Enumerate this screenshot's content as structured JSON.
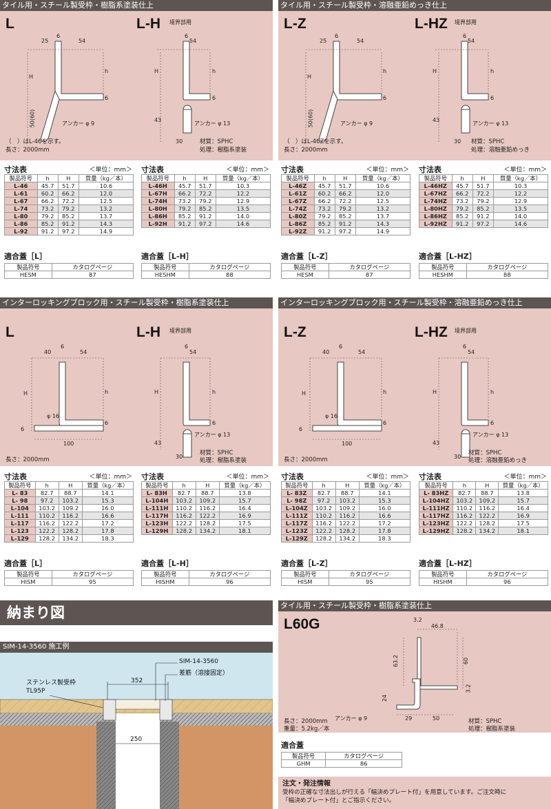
{
  "panels": {
    "p1": {
      "header": "タイル用・スチール製受枠・樹脂系塗装仕上",
      "g1": "L",
      "g2": "L-H",
      "g2sub": "境界部用",
      "d": {
        "a25": "25",
        "a6": "6",
        "a54": "54",
        "b6": "6",
        "b54": "54",
        "H": "H",
        "h": "h",
        "t6": "6",
        "v6": "6",
        "h2": "H",
        "hh2": "h",
        "v50": "50(60)",
        "v43": "43",
        "h30": "30",
        "anc1": "アンカー φ 9",
        "anc2": "アンカー φ 13"
      },
      "noteL": "（　）はL-46を示す。",
      "length": "長さ：2000mm",
      "material": "材質：SPHC",
      "treat": "処理：樹脂系塗装"
    },
    "p2": {
      "header": "タイル用・スチール製受枠・溶融亜鉛めっき仕上",
      "g1": "L-Z",
      "g2": "L-HZ",
      "g2sub": "境界部用",
      "d": {
        "a25": "25",
        "a6": "6",
        "a54": "54",
        "b6": "6",
        "b54": "54",
        "H": "H",
        "h": "h",
        "t6": "6",
        "v6": "6",
        "h2": "H",
        "hh2": "h",
        "v50": "50(60)",
        "v43": "43",
        "h30": "30",
        "anc1": "アンカー φ 9",
        "anc2": "アンカー φ 13"
      },
      "noteL": "（　）はL-46Zを示す。",
      "length": "長さ：2000mm",
      "material": "材質：SPHC",
      "treat": "処理：溶融亜鉛めっき"
    },
    "p3": {
      "header": "インターロッキングブロック用・スチール製受枠・樹脂系塗装仕上",
      "g1": "L",
      "g2": "L-H",
      "g2sub": "境界部用",
      "d": {
        "a40": "40",
        "a6": "6",
        "a54": "54",
        "b6": "6",
        "b54": "54",
        "H": "H",
        "h": "h",
        "phi": "φ 16",
        "v6a": "6",
        "w100": "100",
        "v6b": "6",
        "h2": "H",
        "hh2": "h",
        "v6c": "6",
        "v43": "43",
        "h30": "30",
        "anc2": "アンカー φ 13"
      },
      "length": "長さ：2000mm",
      "material": "材質：SPHC",
      "treat": "処理：樹脂系塗装"
    },
    "p4": {
      "header": "インターロッキングブロック用・スチール製受枠・溶融亜鉛めっき仕上",
      "g1": "L-Z",
      "g2": "L-HZ",
      "g2sub": "境界部用",
      "d": {
        "a40": "40",
        "a6": "6",
        "a54": "54",
        "b6": "6",
        "b54": "54",
        "H": "H",
        "h": "h",
        "phi": "φ 16",
        "v6a": "6",
        "w100": "100",
        "v6b": "6",
        "h2": "H",
        "hh2": "h",
        "v6c": "6",
        "v43": "43",
        "h30": "30",
        "anc2": "アンカー φ 13"
      },
      "length": "長さ：2000mm",
      "material": "材質：SPHC",
      "treat": "処理：溶融亜鉛めっき"
    }
  },
  "st": {
    "title": "寸法表",
    "unit": "＜単位：mm＞",
    "cols": [
      "製品符号",
      "h",
      "H",
      "質量（kg／本）"
    ]
  },
  "tables": {
    "t1": [
      [
        "L-46",
        "45.7",
        "51.7",
        "10.6"
      ],
      [
        "L-61",
        "60.2",
        "66.2",
        "12.0"
      ],
      [
        "L-67",
        "66.2",
        "72.2",
        "12.5"
      ],
      [
        "L-74",
        "73.2",
        "79.2",
        "13.2"
      ],
      [
        "L-80",
        "79.2",
        "85.2",
        "13.7"
      ],
      [
        "L-86",
        "85.2",
        "91.2",
        "14.3"
      ],
      [
        "L-92",
        "91.2",
        "97.2",
        "14.9"
      ]
    ],
    "t2": [
      [
        "L-46H",
        "45.7",
        "51.7",
        "10.3"
      ],
      [
        "L-67H",
        "66.2",
        "72.2",
        "12.2"
      ],
      [
        "L-74H",
        "73.2",
        "79.2",
        "12.9"
      ],
      [
        "L-80H",
        "79.2",
        "85.2",
        "13.5"
      ],
      [
        "L-86H",
        "85.2",
        "91.2",
        "14.0"
      ],
      [
        "L-92H",
        "91.2",
        "97.2",
        "14.6"
      ]
    ],
    "t3": [
      [
        "L-46Z",
        "45.7",
        "51.7",
        "10.6"
      ],
      [
        "L-61Z",
        "60.2",
        "66.2",
        "12.0"
      ],
      [
        "L-67Z",
        "66.2",
        "72.2",
        "12.5"
      ],
      [
        "L-74Z",
        "73.2",
        "79.2",
        "13.2"
      ],
      [
        "L-80Z",
        "79.2",
        "85.2",
        "13.7"
      ],
      [
        "L-86Z",
        "85.2",
        "91.2",
        "14.3"
      ],
      [
        "L-92Z",
        "91.2",
        "97.2",
        "14.9"
      ]
    ],
    "t4": [
      [
        "L-46HZ",
        "45.7",
        "51.7",
        "10.3"
      ],
      [
        "L-67HZ",
        "66.2",
        "72.2",
        "12.2"
      ],
      [
        "L-74HZ",
        "73.2",
        "79.2",
        "12.9"
      ],
      [
        "L-80HZ",
        "79.2",
        "85.2",
        "13.5"
      ],
      [
        "L-86HZ",
        "85.2",
        "91.2",
        "14.0"
      ],
      [
        "L-92HZ",
        "91.2",
        "97.2",
        "14.6"
      ]
    ],
    "t5": [
      [
        "L- 83",
        "82.7",
        "88.7",
        "14.1"
      ],
      [
        "L- 98",
        "97.2",
        "103.2",
        "15.3"
      ],
      [
        "L-104",
        "103.2",
        "109.2",
        "16.0"
      ],
      [
        "L-111",
        "110.2",
        "116.2",
        "16.6"
      ],
      [
        "L-117",
        "116.2",
        "122.2",
        "17.2"
      ],
      [
        "L-123",
        "122.2",
        "128.2",
        "17.8"
      ],
      [
        "L-129",
        "128.2",
        "134.2",
        "18.3"
      ]
    ],
    "t6": [
      [
        "L- 83H",
        "82.7",
        "88.7",
        "13.8"
      ],
      [
        "L-104H",
        "103.2",
        "109.2",
        "15.7"
      ],
      [
        "L-111H",
        "110.2",
        "116.2",
        "16.4"
      ],
      [
        "L-117H",
        "116.2",
        "122.2",
        "16.9"
      ],
      [
        "L-123H",
        "122.2",
        "128.2",
        "17.5"
      ],
      [
        "L-129H",
        "128.2",
        "134.2",
        "18.1"
      ]
    ],
    "t7": [
      [
        "L- 83Z",
        "82.7",
        "88.7",
        "14.1"
      ],
      [
        "L- 98Z",
        "97.2",
        "103.2",
        "15.3"
      ],
      [
        "L-104Z",
        "103.2",
        "109.2",
        "16.0"
      ],
      [
        "L-111Z",
        "110.2",
        "116.2",
        "16.6"
      ],
      [
        "L-117Z",
        "116.2",
        "122.2",
        "17.2"
      ],
      [
        "L-123Z",
        "122.2",
        "128.2",
        "17.8"
      ],
      [
        "L-129Z",
        "128.2",
        "134.2",
        "18.3"
      ]
    ],
    "t8": [
      [
        "L- 83HZ",
        "82.7",
        "88.7",
        "13.8"
      ],
      [
        "L-104HZ",
        "103.2",
        "109.2",
        "15.7"
      ],
      [
        "L-111HZ",
        "110.2",
        "116.2",
        "16.4"
      ],
      [
        "L-117HZ",
        "116.2",
        "122.2",
        "16.9"
      ],
      [
        "L-123HZ",
        "122.2",
        "128.2",
        "17.5"
      ],
      [
        "L-129HZ",
        "128.2",
        "134.2",
        "18.1"
      ]
    ]
  },
  "fits": {
    "cols": [
      "製品符号",
      "カタログページ"
    ],
    "f1": {
      "title": "適合蓋［L］",
      "code": "HESM",
      "page": "87"
    },
    "f2": {
      "title": "適合蓋［L-H］",
      "code": "HESHM",
      "page": "88"
    },
    "f3": {
      "title": "適合蓋［L-Z］",
      "code": "HESM",
      "page": "87"
    },
    "f4": {
      "title": "適合蓋［L-HZ］",
      "code": "HESHM",
      "page": "88"
    },
    "f5": {
      "title": "適合蓋［L］",
      "code": "HISM",
      "page": "95"
    },
    "f6": {
      "title": "適合蓋［L-H］",
      "code": "HISHM",
      "page": "96"
    },
    "f7": {
      "title": "適合蓋［L-Z］",
      "code": "HISM",
      "page": "95"
    },
    "f8": {
      "title": "適合蓋［L-HZ］",
      "code": "HISHM",
      "page": "96"
    },
    "f9": {
      "title": "適合蓋",
      "code": "GHM",
      "page": "86"
    }
  },
  "install": {
    "title": "納まり図",
    "sub": "SIM-14-3560 施工例",
    "sim": "SIM-14-3560",
    "rebar": "差筋（溶接固定）",
    "frame": "ステンレス製受枠",
    "frame2": "TL95P",
    "w352": "352",
    "w250": "250"
  },
  "l60g": {
    "header": "タイル用・スチール製受枠・樹脂系塗装仕上",
    "label": "L60G",
    "d32": "3.2",
    "d468": "46.8",
    "d632": "63.2",
    "d60": "60",
    "d32b": "3.2",
    "d24": "24",
    "d29": "29",
    "d50": "50",
    "anchor": "アンカー φ 9",
    "length": "長さ：2000mm",
    "weight": "重量：5.2kg／本",
    "material": "材質：SPHC",
    "treat": "処理：樹脂系塗装"
  },
  "order": {
    "title": "注文・発注情報",
    "line1": "受枠の正確な寸法出しが行える「幅決めプレート付」を用意しています。ご注文時に",
    "line2": "「幅決めプレート付」とご指示ください。"
  }
}
